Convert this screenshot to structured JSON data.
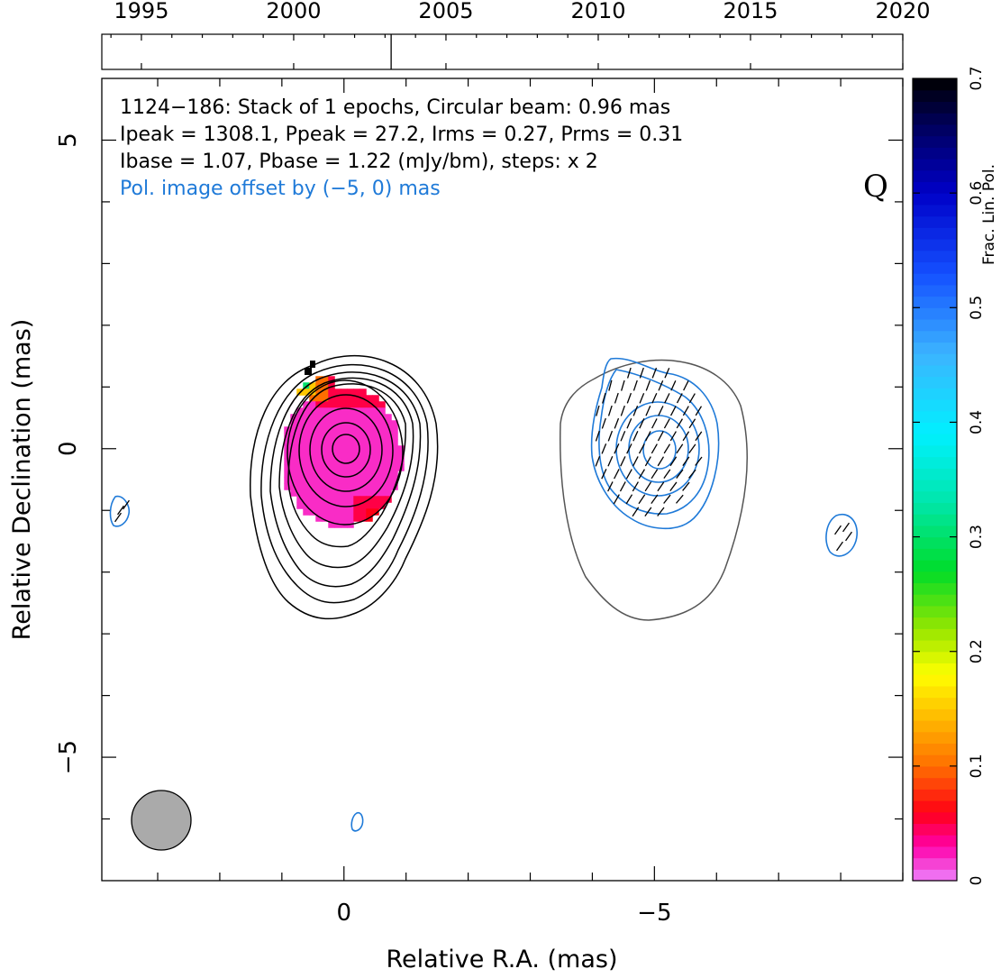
{
  "chart_data": {
    "type": "heatmap",
    "source_name": "1124−186",
    "info_lines": [
      "1124−186: Stack of 1 epochs, Circular beam: 0.96 mas",
      "Ipeak = 1308.1, Ppeak = 27.2, Irms = 0.27, Prms = 0.31",
      "Ibase = 1.07, Pbase = 1.22 (mJy/bm), steps: x 2"
    ],
    "offset_note": "Pol. image offset by (−5, 0) mas",
    "band_label": "Q",
    "xlabel": "Relative R.A. (mas)",
    "ylabel": "Relative Declination (mas)",
    "xlim": [
      3.9,
      -9.0
    ],
    "ylim": [
      -7.0,
      6.0
    ],
    "x_tick_labels": [
      "0",
      "−5"
    ],
    "y_tick_labels": [
      "5",
      "0",
      "−5"
    ],
    "colorbar": {
      "label": "Frac. Lin. Pol.",
      "range": [
        0,
        0.7
      ],
      "tick_labels": [
        "0",
        "0.1",
        "0.2",
        "0.3",
        "0.4",
        "0.5",
        "0.6",
        "0.7"
      ]
    },
    "timeline": {
      "year_range": [
        1993.7,
        2020.0
      ],
      "tick_labels": [
        "1995",
        "2000",
        "2005",
        "2010",
        "2015",
        "2020"
      ],
      "epochs": [
        2003.2
      ]
    },
    "beam": {
      "diameter_mas": 0.96,
      "center_mas": [
        3.0,
        -6.0
      ]
    },
    "intensity_contours": {
      "center_mas": [
        0,
        0
      ],
      "levels": 10,
      "base_mJy_per_beam": 1.07,
      "step_factor": 2,
      "color": "#000000"
    },
    "polarization_contours": {
      "center_mas": [
        -5,
        0
      ],
      "color": "#1f7ad8",
      "outline_color": "#555555"
    },
    "frac_pol_map": {
      "center_mas": [
        0,
        0
      ],
      "typical_value": 0.02,
      "edge_values": [
        0.05,
        0.1,
        0.15,
        0.3,
        0.6,
        0.7
      ]
    },
    "colors": {
      "contour": "#000000",
      "pol_contour": "#1f7ad8",
      "outline": "#555555",
      "beam_fill": "#aaaaaa",
      "note_text": "#1f7ad8"
    }
  }
}
